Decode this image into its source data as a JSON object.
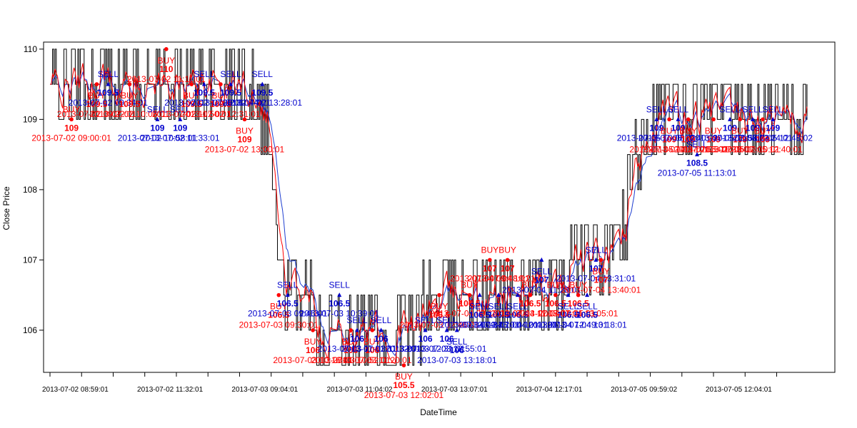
{
  "chart_data": {
    "type": "line",
    "xlabel": "DateTime",
    "ylabel": "Close Price",
    "ylim": [
      105.4,
      110.1
    ],
    "y_ticks": [
      106,
      107,
      108,
      109,
      110
    ],
    "x_tick_labels": [
      "2013-07-02 08:59:01",
      "2013-07-02 11:32:01",
      "2013-07-03 09:04:01",
      "2013-07-03 11:04:02",
      "2013-07-03 13:07:01",
      "2013-07-04 12:17:01",
      "2013-07-05 09:59:02",
      "2013-07-05 12:04:01"
    ],
    "n_observations": 600,
    "x_tick_index": [
      20,
      95,
      170,
      245,
      320,
      395,
      470,
      545
    ],
    "colors": {
      "price": "#000000",
      "fast_ma": "#ff0000",
      "slow_ma": "#1f3fd0",
      "buy": "#ff0000",
      "sell": "#0000cc"
    },
    "price_path": [
      [
        0,
        109.5
      ],
      [
        40,
        109.5
      ],
      [
        80,
        109.5
      ],
      [
        120,
        109.5
      ],
      [
        150,
        109.5
      ],
      [
        160,
        109.5
      ],
      [
        170,
        109.0
      ],
      [
        175,
        108.5
      ],
      [
        180,
        107.0
      ],
      [
        185,
        106.5
      ],
      [
        190,
        106.5
      ],
      [
        205,
        106.5
      ],
      [
        215,
        106.0
      ],
      [
        230,
        106.0
      ],
      [
        240,
        106.0
      ],
      [
        250,
        105.8
      ],
      [
        260,
        105.8
      ],
      [
        270,
        105.7
      ],
      [
        280,
        105.9
      ],
      [
        295,
        106.3
      ],
      [
        310,
        106.3
      ],
      [
        325,
        106.3
      ],
      [
        340,
        106.5
      ],
      [
        360,
        106.6
      ],
      [
        380,
        106.7
      ],
      [
        400,
        106.7
      ],
      [
        420,
        106.8
      ],
      [
        435,
        106.9
      ],
      [
        445,
        107.1
      ],
      [
        455,
        107.6
      ],
      [
        462,
        108.4
      ],
      [
        470,
        108.9
      ],
      [
        490,
        108.9
      ],
      [
        520,
        108.9
      ],
      [
        540,
        108.9
      ],
      [
        560,
        109.0
      ],
      [
        580,
        109.1
      ],
      [
        599,
        109.2
      ]
    ],
    "trades": [
      {
        "type": "BUY",
        "i": 17,
        "price": "109",
        "time": "2013-07-02 09:00:01"
      },
      {
        "type": "BUY",
        "i": 37,
        "price": "109.5",
        "time": "2013-07-02 09:22:01"
      },
      {
        "type": "SELL",
        "i": 46,
        "price": "109.5",
        "time": "2013-07-02 09:34:01"
      },
      {
        "type": "BUY",
        "i": 63,
        "price": "109.5",
        "time": "2013-07-02 10:06:01"
      },
      {
        "type": "SELL",
        "i": 85,
        "price": "109",
        "time": "2013-07-02 10:58:01"
      },
      {
        "type": "BUY",
        "i": 92,
        "price": "110",
        "time": "2013-07-02 11:11:01"
      },
      {
        "type": "SELL",
        "i": 103,
        "price": "109",
        "time": "2013-07-02 11:33:01"
      },
      {
        "type": "BUY",
        "i": 112,
        "price": "109.5",
        "time": "2013-07-02 11:50:01"
      },
      {
        "type": "SELL",
        "i": 122,
        "price": "109.5",
        "time": "2013-07-02 12:08:01"
      },
      {
        "type": "BUY",
        "i": 135,
        "price": "109.5",
        "time": "2013-07-02 12:31:01"
      },
      {
        "type": "SELL",
        "i": 143,
        "price": "109.5",
        "time": "2013-07-02 12:44:01"
      },
      {
        "type": "BUY",
        "i": 154,
        "price": "109",
        "time": "2013-07-02 13:00:01"
      },
      {
        "type": "SELL",
        "i": 168,
        "price": "109.5",
        "time": "2013-07-02 13:28:01"
      },
      {
        "type": "BUY",
        "i": 181,
        "price": "106.5",
        "time": "2013-07-03 09:30:01"
      },
      {
        "type": "SELL",
        "i": 188,
        "price": "106.5",
        "time": "2013-07-03 09:46:01"
      },
      {
        "type": "BUY",
        "i": 208,
        "price": "106",
        "time": "2013-07-03 10:16:01"
      },
      {
        "type": "SELL",
        "i": 229,
        "price": "106.5",
        "time": "2013-07-03 10:39:01"
      },
      {
        "type": "BUY",
        "i": 238,
        "price": "106",
        "time": "2013-07-03 10:52:01"
      },
      {
        "type": "SELL",
        "i": 243,
        "price": "106",
        "time": "2013-07-03 11:01:01"
      },
      {
        "type": "BUY",
        "i": 255,
        "price": "106",
        "time": "2013-07-03 11:20:01"
      },
      {
        "type": "SELL",
        "i": 262,
        "price": "106",
        "time": "2013-07-03 11:32:01"
      },
      {
        "type": "BUY",
        "i": 280,
        "price": "105.5",
        "time": "2013-07-03 12:02:01"
      },
      {
        "type": "SELL",
        "i": 297,
        "price": "106",
        "time": "2013-07-03 12:31:01"
      },
      {
        "type": "BUY",
        "i": 308,
        "price": "106.5",
        "time": "2013-07-03 12:46:01"
      },
      {
        "type": "SELL",
        "i": 314,
        "price": "106",
        "time": "2013-07-03 12:55:01"
      },
      {
        "type": "SELL",
        "i": 322,
        "price": "106",
        "time": "2013-07-03 13:18:01"
      },
      {
        "type": "BUY",
        "i": 332,
        "price": "106.5",
        "time": "2013-07-04 09:12:01"
      },
      {
        "type": "SELL",
        "i": 340,
        "price": "106.5",
        "time": "2013-07-04 09:26:01"
      },
      {
        "type": "BUY",
        "i": 348,
        "price": "107",
        "time": "2013-07-04 09:48:01"
      },
      {
        "type": "SELL",
        "i": 355,
        "price": "106.5",
        "time": "2013-07-04 10:04:01"
      },
      {
        "type": "BUY",
        "i": 362,
        "price": "107",
        "time": "2013-07-04 10:21:01"
      },
      {
        "type": "SELL",
        "i": 370,
        "price": "106.5",
        "time": "2013-07-04 10:40:01"
      },
      {
        "type": "BUY",
        "i": 380,
        "price": "106.5",
        "time": "2013-07-04 11:05:01"
      },
      {
        "type": "SELL",
        "i": 389,
        "price": "107",
        "time": "2013-07-04 11:28:01"
      },
      {
        "type": "BUY",
        "i": 400,
        "price": "106.5",
        "time": "2013-07-04 12:25:01"
      },
      {
        "type": "SELL",
        "i": 410,
        "price": "106.5",
        "time": "2013-07-04 12:49:01"
      },
      {
        "type": "BUY",
        "i": 418,
        "price": "106.5",
        "time": "2013-07-04 13:05:01"
      },
      {
        "type": "SELL",
        "i": 425,
        "price": "106.5",
        "time": "2013-07-04 13:18:01"
      },
      {
        "type": "SELL",
        "i": 432,
        "price": "107",
        "time": "2013-07-04 13:31:01"
      },
      {
        "type": "BUY",
        "i": 436,
        "price": "107",
        "time": "2013-07-04 13:40:01"
      },
      {
        "type": "SELL",
        "i": 480,
        "price": "109",
        "time": "2013-07-05 10:08:01"
      },
      {
        "type": "BUY",
        "i": 490,
        "price": "109",
        "time": "2013-07-05 10:27:01"
      },
      {
        "type": "SELL",
        "i": 497,
        "price": "109",
        "time": "2013-07-05 10:40:01"
      },
      {
        "type": "BUY",
        "i": 505,
        "price": "109",
        "time": "2013-07-05 10:55:01"
      },
      {
        "type": "SELL",
        "i": 512,
        "price": "108.5",
        "time": "2013-07-05 11:13:01"
      },
      {
        "type": "BUY",
        "i": 525,
        "price": "109",
        "time": "2013-07-05 11:38:01"
      },
      {
        "type": "SELL",
        "i": 538,
        "price": "109",
        "time": "2013-07-05 11:58:01"
      },
      {
        "type": "BUY",
        "i": 546,
        "price": "109",
        "time": "2013-07-05 12:10:01"
      },
      {
        "type": "SELL",
        "i": 556,
        "price": "109",
        "time": "2013-07-05 12:24:01"
      },
      {
        "type": "BUY",
        "i": 564,
        "price": "109",
        "time": "2013-07-05 12:40:01"
      },
      {
        "type": "SELL",
        "i": 572,
        "price": "109",
        "time": "2013-07-05 12:48:02"
      }
    ]
  }
}
